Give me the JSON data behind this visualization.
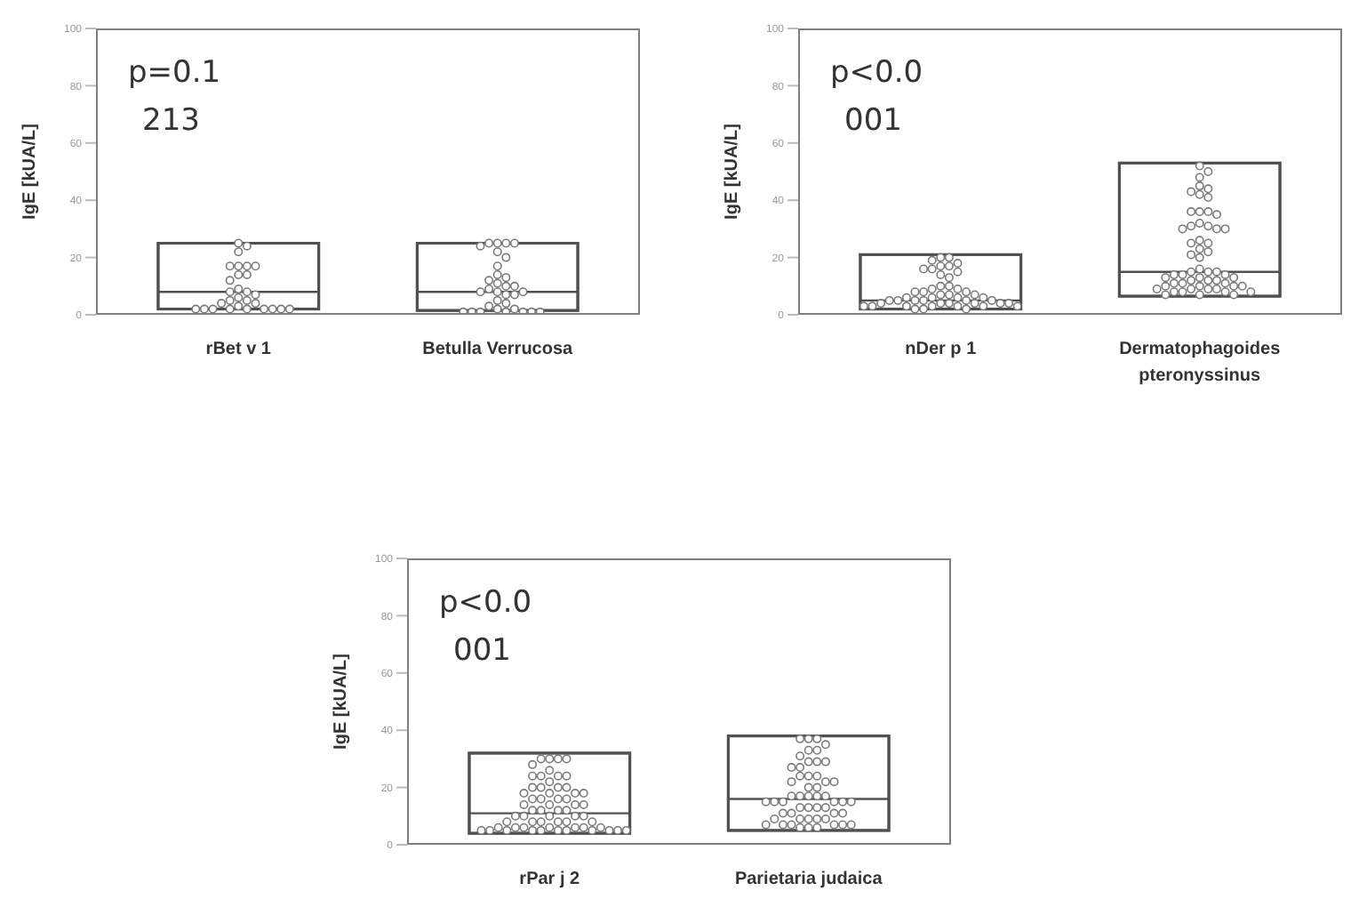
{
  "chart_data": [
    {
      "type": "box",
      "ylabel": "IgE [kUA/L]",
      "annotations": [
        "p=0.1",
        "213"
      ],
      "categories": [
        "rBet v 1",
        "Betulla Verrucosa"
      ],
      "color": "#505050",
      "legend": false,
      "grid": false,
      "marker": "circle",
      "ylim": [
        0,
        100
      ],
      "yticks": [
        0,
        20,
        40,
        60,
        80,
        100
      ],
      "boxes": [
        {
          "low": 2,
          "q1": 2,
          "median": 8,
          "q3": 25,
          "high": 25
        },
        {
          "low": 1.5,
          "q1": 1.5,
          "median": 8,
          "q3": 25,
          "high": 25
        }
      ],
      "series": [
        {
          "type": "scatter",
          "color": "#7a7a7a",
          "x": [
            "rBet v 1",
            "rBet v 1",
            "rBet v 1",
            "rBet v 1",
            "rBet v 1",
            "rBet v 1",
            "rBet v 1",
            "rBet v 1",
            "rBet v 1",
            "rBet v 1",
            "rBet v 1",
            "rBet v 1",
            "rBet v 1",
            "rBet v 1",
            "rBet v 1",
            "rBet v 1",
            "rBet v 1",
            "rBet v 1",
            "rBet v 1",
            "rBet v 1",
            "rBet v 1",
            "rBet v 1",
            "rBet v 1",
            "rBet v 1",
            "rBet v 1",
            "rBet v 1",
            "rBet v 1",
            "rBet v 1",
            "rBet v 1"
          ],
          "values": [
            25,
            24,
            22,
            17,
            17,
            17,
            17,
            14,
            14,
            12,
            9,
            8,
            8,
            7,
            6,
            5,
            5,
            4,
            4,
            3,
            2,
            2,
            2,
            2,
            2,
            2,
            2,
            2,
            2
          ]
        },
        {
          "type": "scatter",
          "color": "#7a7a7a",
          "x": [
            "Betulla Verrucosa",
            "Betulla Verrucosa",
            "Betulla Verrucosa",
            "Betulla Verrucosa",
            "Betulla Verrucosa",
            "Betulla Verrucosa",
            "Betulla Verrucosa",
            "Betulla Verrucosa",
            "Betulla Verrucosa",
            "Betulla Verrucosa",
            "Betulla Verrucosa",
            "Betulla Verrucosa",
            "Betulla Verrucosa",
            "Betulla Verrucosa",
            "Betulla Verrucosa",
            "Betulla Verrucosa",
            "Betulla Verrucosa",
            "Betulla Verrucosa",
            "Betulla Verrucosa",
            "Betulla Verrucosa",
            "Betulla Verrucosa",
            "Betulla Verrucosa",
            "Betulla Verrucosa",
            "Betulla Verrucosa",
            "Betulla Verrucosa",
            "Betulla Verrucosa",
            "Betulla Verrucosa",
            "Betulla Verrucosa",
            "Betulla Verrucosa",
            "Betulla Verrucosa",
            "Betulla Verrucosa",
            "Betulla Verrucosa"
          ],
          "values": [
            25,
            25,
            25,
            25,
            24,
            22,
            20,
            17,
            14,
            13,
            12,
            11,
            10,
            10,
            9,
            8,
            8,
            8,
            7,
            7,
            5,
            4,
            3,
            2,
            2,
            1,
            1,
            1,
            1,
            1,
            1,
            1
          ]
        }
      ]
    },
    {
      "type": "box",
      "ylabel": "IgE [kUA/L]",
      "annotations": [
        "p<0.0",
        "001"
      ],
      "categories": [
        "nDer p 1",
        "Dermatophagoides pteronyssinus"
      ],
      "color": "#505050",
      "legend": false,
      "grid": false,
      "marker": "circle",
      "ylim": [
        0,
        100
      ],
      "yticks": [
        0,
        20,
        40,
        60,
        80,
        100
      ],
      "boxes": [
        {
          "low": 2,
          "q1": 2,
          "median": 5,
          "q3": 21,
          "high": 21
        },
        {
          "low": 6.5,
          "q1": 6.5,
          "median": 15,
          "q3": 53,
          "high": 53
        }
      ],
      "series": [
        {
          "type": "scatter",
          "color": "#7a7a7a",
          "x": [
            "nDer p 1",
            "nDer p 1",
            "nDer p 1",
            "nDer p 1",
            "nDer p 1",
            "nDer p 1",
            "nDer p 1",
            "nDer p 1",
            "nDer p 1",
            "nDer p 1",
            "nDer p 1",
            "nDer p 1",
            "nDer p 1",
            "nDer p 1",
            "nDer p 1",
            "nDer p 1",
            "nDer p 1",
            "nDer p 1",
            "nDer p 1",
            "nDer p 1",
            "nDer p 1",
            "nDer p 1",
            "nDer p 1",
            "nDer p 1",
            "nDer p 1",
            "nDer p 1",
            "nDer p 1",
            "nDer p 1",
            "nDer p 1",
            "nDer p 1",
            "nDer p 1",
            "nDer p 1",
            "nDer p 1",
            "nDer p 1",
            "nDer p 1",
            "nDer p 1",
            "nDer p 1",
            "nDer p 1",
            "nDer p 1",
            "nDer p 1",
            "nDer p 1",
            "nDer p 1",
            "nDer p 1",
            "nDer p 1",
            "nDer p 1",
            "nDer p 1",
            "nDer p 1"
          ],
          "values": [
            20,
            20,
            19,
            18,
            17,
            17,
            16,
            16,
            15,
            14,
            13,
            10,
            10,
            9,
            9,
            8,
            8,
            8,
            7,
            7,
            7,
            6,
            6,
            6,
            6,
            5,
            5,
            5,
            5,
            5,
            5,
            4,
            4,
            4,
            4,
            4,
            4,
            3,
            3,
            3,
            3,
            3,
            3,
            3,
            2,
            2,
            2
          ]
        },
        {
          "type": "scatter",
          "color": "#7a7a7a",
          "x": [
            "Dermatophagoides pteronyssinus",
            "Dermatophagoides pteronyssinus",
            "Dermatophagoides pteronyssinus",
            "Dermatophagoides pteronyssinus",
            "Dermatophagoides pteronyssinus",
            "Dermatophagoides pteronyssinus",
            "Dermatophagoides pteronyssinus",
            "Dermatophagoides pteronyssinus",
            "Dermatophagoides pteronyssinus",
            "Dermatophagoides pteronyssinus",
            "Dermatophagoides pteronyssinus",
            "Dermatophagoides pteronyssinus",
            "Dermatophagoides pteronyssinus",
            "Dermatophagoides pteronyssinus",
            "Dermatophagoides pteronyssinus",
            "Dermatophagoides pteronyssinus",
            "Dermatophagoides pteronyssinus",
            "Dermatophagoides pteronyssinus",
            "Dermatophagoides pteronyssinus",
            "Dermatophagoides pteronyssinus",
            "Dermatophagoides pteronyssinus",
            "Dermatophagoides pteronyssinus",
            "Dermatophagoides pteronyssinus",
            "Dermatophagoides pteronyssinus",
            "Dermatophagoides pteronyssinus",
            "Dermatophagoides pteronyssinus",
            "Dermatophagoides pteronyssinus",
            "Dermatophagoides pteronyssinus",
            "Dermatophagoides pteronyssinus",
            "Dermatophagoides pteronyssinus",
            "Dermatophagoides pteronyssinus",
            "Dermatophagoides pteronyssinus",
            "Dermatophagoides pteronyssinus",
            "Dermatophagoides pteronyssinus",
            "Dermatophagoides pteronyssinus",
            "Dermatophagoides pteronyssinus",
            "Dermatophagoides pteronyssinus",
            "Dermatophagoides pteronyssinus",
            "Dermatophagoides pteronyssinus",
            "Dermatophagoides pteronyssinus",
            "Dermatophagoides pteronyssinus",
            "Dermatophagoides pteronyssinus",
            "Dermatophagoides pteronyssinus",
            "Dermatophagoides pteronyssinus",
            "Dermatophagoides pteronyssinus",
            "Dermatophagoides pteronyssinus",
            "Dermatophagoides pteronyssinus",
            "Dermatophagoides pteronyssinus",
            "Dermatophagoides pteronyssinus",
            "Dermatophagoides pteronyssinus",
            "Dermatophagoides pteronyssinus",
            "Dermatophagoides pteronyssinus",
            "Dermatophagoides pteronyssinus",
            "Dermatophagoides pteronyssinus",
            "Dermatophagoides pteronyssinus",
            "Dermatophagoides pteronyssinus"
          ],
          "values": [
            52,
            50,
            48,
            45,
            44,
            43,
            42,
            41,
            36,
            36,
            36,
            35,
            32,
            31,
            31,
            30,
            30,
            30,
            26,
            25,
            25,
            23,
            22,
            21,
            20,
            16,
            15,
            15,
            15,
            14,
            14,
            14,
            13,
            13,
            13,
            12,
            12,
            12,
            11,
            11,
            11,
            10,
            10,
            10,
            10,
            9,
            9,
            9,
            9,
            8,
            8,
            8,
            8,
            7,
            7,
            7
          ]
        }
      ]
    },
    {
      "type": "box",
      "ylabel": "IgE [kUA/L]",
      "annotations": [
        "p<0.0",
        "001"
      ],
      "categories": [
        "rPar j 2",
        "Parietaria judaica"
      ],
      "color": "#505050",
      "legend": false,
      "grid": false,
      "marker": "circle",
      "ylim": [
        0,
        100
      ],
      "yticks": [
        0,
        20,
        40,
        60,
        80,
        100
      ],
      "boxes": [
        {
          "low": 4,
          "q1": 4,
          "median": 11,
          "q3": 32,
          "high": 32
        },
        {
          "low": 5,
          "q1": 5,
          "median": 16,
          "q3": 38,
          "high": 38
        }
      ],
      "series": [
        {
          "type": "scatter",
          "color": "#7a7a7a",
          "x": [
            "rPar j 2",
            "rPar j 2",
            "rPar j 2",
            "rPar j 2",
            "rPar j 2",
            "rPar j 2",
            "rPar j 2",
            "rPar j 2",
            "rPar j 2",
            "rPar j 2",
            "rPar j 2",
            "rPar j 2",
            "rPar j 2",
            "rPar j 2",
            "rPar j 2",
            "rPar j 2",
            "rPar j 2",
            "rPar j 2",
            "rPar j 2",
            "rPar j 2",
            "rPar j 2",
            "rPar j 2",
            "rPar j 2",
            "rPar j 2",
            "rPar j 2",
            "rPar j 2",
            "rPar j 2",
            "rPar j 2",
            "rPar j 2",
            "rPar j 2",
            "rPar j 2",
            "rPar j 2",
            "rPar j 2",
            "rPar j 2",
            "rPar j 2",
            "rPar j 2",
            "rPar j 2",
            "rPar j 2",
            "rPar j 2",
            "rPar j 2",
            "rPar j 2",
            "rPar j 2",
            "rPar j 2",
            "rPar j 2",
            "rPar j 2",
            "rPar j 2",
            "rPar j 2",
            "rPar j 2",
            "rPar j 2",
            "rPar j 2",
            "rPar j 2",
            "rPar j 2",
            "rPar j 2",
            "rPar j 2",
            "rPar j 2",
            "rPar j 2",
            "rPar j 2",
            "rPar j 2",
            "rPar j 2",
            "rPar j 2"
          ],
          "values": [
            30,
            30,
            30,
            30,
            28,
            26,
            24,
            24,
            24,
            24,
            22,
            20,
            20,
            20,
            20,
            18,
            18,
            18,
            18,
            16,
            16,
            16,
            16,
            14,
            14,
            14,
            14,
            12,
            12,
            12,
            12,
            10,
            10,
            10,
            10,
            10,
            8,
            8,
            8,
            8,
            8,
            8,
            6,
            6,
            6,
            6,
            6,
            6,
            6,
            5,
            5,
            5,
            5,
            5,
            5,
            5,
            5,
            5,
            5,
            5
          ]
        },
        {
          "type": "scatter",
          "color": "#7a7a7a",
          "x": [
            "Parietaria judaica",
            "Parietaria judaica",
            "Parietaria judaica",
            "Parietaria judaica",
            "Parietaria judaica",
            "Parietaria judaica",
            "Parietaria judaica",
            "Parietaria judaica",
            "Parietaria judaica",
            "Parietaria judaica",
            "Parietaria judaica",
            "Parietaria judaica",
            "Parietaria judaica",
            "Parietaria judaica",
            "Parietaria judaica",
            "Parietaria judaica",
            "Parietaria judaica",
            "Parietaria judaica",
            "Parietaria judaica",
            "Parietaria judaica",
            "Parietaria judaica",
            "Parietaria judaica",
            "Parietaria judaica",
            "Parietaria judaica",
            "Parietaria judaica",
            "Parietaria judaica",
            "Parietaria judaica",
            "Parietaria judaica",
            "Parietaria judaica",
            "Parietaria judaica",
            "Parietaria judaica",
            "Parietaria judaica",
            "Parietaria judaica",
            "Parietaria judaica",
            "Parietaria judaica",
            "Parietaria judaica",
            "Parietaria judaica",
            "Parietaria judaica",
            "Parietaria judaica",
            "Parietaria judaica",
            "Parietaria judaica",
            "Parietaria judaica",
            "Parietaria judaica",
            "Parietaria judaica",
            "Parietaria judaica",
            "Parietaria judaica",
            "Parietaria judaica",
            "Parietaria judaica",
            "Parietaria judaica",
            "Parietaria judaica",
            "Parietaria judaica",
            "Parietaria judaica",
            "Parietaria judaica"
          ],
          "values": [
            37,
            37,
            37,
            35,
            33,
            33,
            31,
            29,
            29,
            29,
            27,
            27,
            24,
            24,
            24,
            22,
            22,
            22,
            20,
            20,
            17,
            17,
            17,
            17,
            17,
            15,
            15,
            15,
            15,
            15,
            15,
            13,
            13,
            13,
            13,
            11,
            11,
            11,
            11,
            9,
            9,
            9,
            9,
            9,
            7,
            7,
            7,
            7,
            7,
            7,
            6,
            6,
            6
          ]
        }
      ]
    }
  ]
}
